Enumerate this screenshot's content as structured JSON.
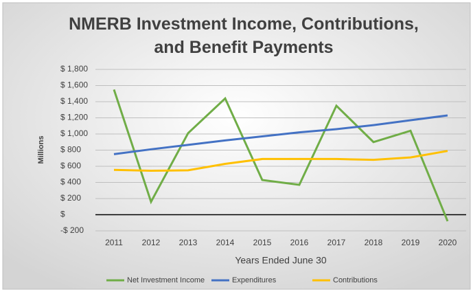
{
  "chart_data": {
    "type": "line",
    "title": "NMERB Investment Income, Contributions, and Benefit Payments",
    "y_label": "Millions",
    "x_label": "Years Ended June 30",
    "categories": [
      "2011",
      "2012",
      "2013",
      "2014",
      "2015",
      "2016",
      "2017",
      "2018",
      "2019",
      "2020"
    ],
    "series": [
      {
        "name": "Net Investment Income",
        "color": "#70ad47",
        "values": [
          1550,
          160,
          1010,
          1440,
          430,
          370,
          1350,
          900,
          1040,
          -80
        ]
      },
      {
        "name": "Expenditures",
        "color": "#4472c4",
        "values": [
          750,
          810,
          865,
          920,
          970,
          1020,
          1060,
          1110,
          1170,
          1230
        ]
      },
      {
        "name": "Contributions",
        "color": "#ffc000",
        "values": [
          555,
          545,
          550,
          630,
          690,
          690,
          690,
          680,
          710,
          790
        ]
      }
    ],
    "ylim": [
      -200,
      1800
    ],
    "yticks": [
      {
        "value": -200,
        "label": "-$ 200"
      },
      {
        "value": 0,
        "label": "$"
      },
      {
        "value": 200,
        "label": "$ 200"
      },
      {
        "value": 400,
        "label": "$ 400"
      },
      {
        "value": 600,
        "label": "$ 600"
      },
      {
        "value": 800,
        "label": "$ 800"
      },
      {
        "value": 1000,
        "label": "$ 1,000"
      },
      {
        "value": 1200,
        "label": "$ 1,200"
      },
      {
        "value": 1400,
        "label": "$ 1,400"
      },
      {
        "value": 1600,
        "label": "$ 1,600"
      },
      {
        "value": 1800,
        "label": "$ 1,800"
      }
    ],
    "grid": true,
    "legend": "bottom"
  }
}
